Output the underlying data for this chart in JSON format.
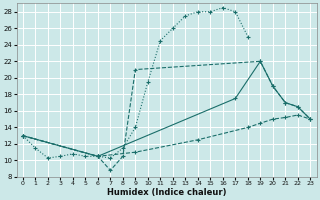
{
  "xlabel": "Humidex (Indice chaleur)",
  "bg_color": "#cce8e8",
  "grid_color": "#ffffff",
  "line_color": "#1a6e6a",
  "xlim": [
    -0.5,
    23.5
  ],
  "ylim": [
    8,
    29
  ],
  "xticks": [
    0,
    1,
    2,
    3,
    4,
    5,
    6,
    7,
    8,
    9,
    10,
    11,
    12,
    13,
    14,
    15,
    16,
    17,
    18,
    19,
    20,
    21,
    22,
    23
  ],
  "yticks": [
    8,
    10,
    12,
    14,
    16,
    18,
    20,
    22,
    24,
    26,
    28
  ],
  "series": [
    {
      "x": [
        0,
        1,
        2,
        3,
        4,
        5,
        6,
        7,
        8,
        9,
        10,
        11,
        12,
        13,
        14,
        15,
        16,
        17,
        18
      ],
      "y": [
        13,
        11.5,
        10.3,
        10.5,
        10.8,
        10.5,
        10.5,
        10.3,
        11.5,
        14.0,
        19.5,
        24.5,
        26.0,
        27.5,
        28.0,
        28.0,
        28.5,
        28.0,
        25.0
      ],
      "linestyle": "dotted",
      "marker": "+"
    },
    {
      "x": [
        0,
        6,
        7,
        8,
        9,
        19,
        20,
        21,
        22,
        23
      ],
      "y": [
        13,
        10.5,
        8.8,
        10.5,
        21.0,
        22.0,
        19.0,
        17.0,
        16.5,
        15.0
      ],
      "linestyle": "dashed",
      "marker": "+"
    },
    {
      "x": [
        0,
        6,
        17,
        19,
        20,
        21,
        22,
        23
      ],
      "y": [
        13,
        10.5,
        17.5,
        22.0,
        19.0,
        17.0,
        16.5,
        15.0
      ],
      "linestyle": "solid",
      "marker": "+"
    },
    {
      "x": [
        0,
        6,
        9,
        14,
        18,
        19,
        20,
        21,
        22,
        23
      ],
      "y": [
        13,
        10.5,
        11.0,
        12.5,
        14.0,
        14.5,
        15.0,
        15.2,
        15.5,
        15.0
      ],
      "linestyle": "dashed",
      "marker": "+"
    }
  ]
}
